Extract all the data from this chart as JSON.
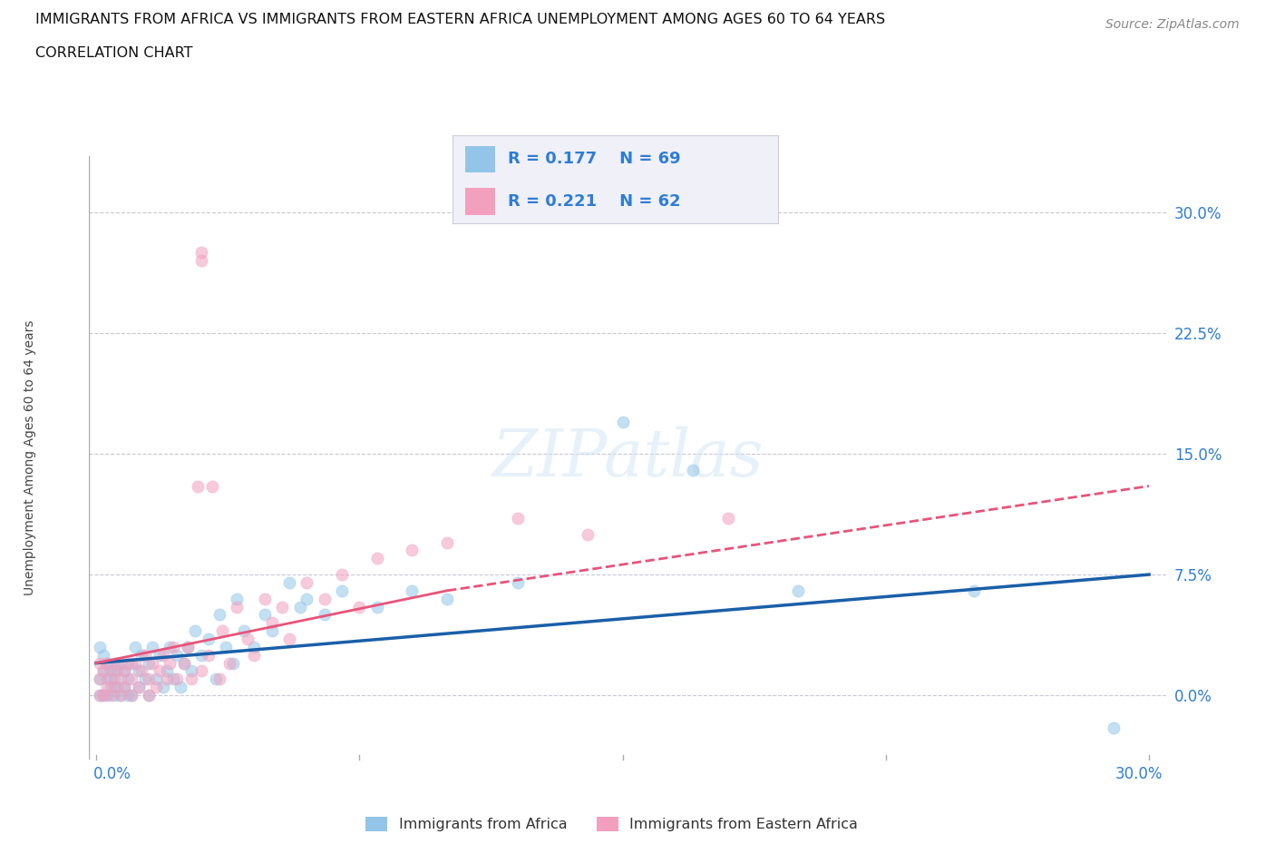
{
  "title_line1": "IMMIGRANTS FROM AFRICA VS IMMIGRANTS FROM EASTERN AFRICA UNEMPLOYMENT AMONG AGES 60 TO 64 YEARS",
  "title_line2": "CORRELATION CHART",
  "source": "Source: ZipAtlas.com",
  "ylabel": "Unemployment Among Ages 60 to 64 years",
  "ytick_labels": [
    "0.0%",
    "7.5%",
    "15.0%",
    "22.5%",
    "30.0%"
  ],
  "ytick_values": [
    0.0,
    0.075,
    0.15,
    0.225,
    0.3
  ],
  "xlim": [
    -0.002,
    0.305
  ],
  "ylim": [
    -0.04,
    0.335
  ],
  "r_africa": 0.177,
  "n_africa": 69,
  "r_eastern": 0.221,
  "n_eastern": 62,
  "color_africa": "#93C5E8",
  "color_eastern": "#F2A0BE",
  "trendline_africa_color": "#1A5FA8",
  "trendline_eastern_color": "#E8547A",
  "background_color": "#FFFFFF",
  "grid_color": "#C8C8D8",
  "right_label_color": "#2E7DD6",
  "title_color": "#111111",
  "source_color": "#888888",
  "legend_bg": "#F0F0F8",
  "legend_border": "#CCCCDD",
  "trendline_africa_start_y": 0.02,
  "trendline_africa_end_y": 0.075,
  "trendline_eastern_start_y": 0.02,
  "trendline_eastern_end_y": 0.13,
  "africa_x": [
    0.001,
    0.001,
    0.001,
    0.002,
    0.002,
    0.002,
    0.003,
    0.003,
    0.003,
    0.004,
    0.004,
    0.005,
    0.005,
    0.005,
    0.006,
    0.006,
    0.007,
    0.007,
    0.008,
    0.008,
    0.009,
    0.009,
    0.01,
    0.01,
    0.011,
    0.012,
    0.012,
    0.013,
    0.014,
    0.015,
    0.015,
    0.016,
    0.017,
    0.018,
    0.019,
    0.02,
    0.021,
    0.022,
    0.023,
    0.024,
    0.025,
    0.026,
    0.027,
    0.028,
    0.03,
    0.032,
    0.034,
    0.035,
    0.037,
    0.039,
    0.04,
    0.042,
    0.045,
    0.048,
    0.05,
    0.055,
    0.058,
    0.06,
    0.065,
    0.07,
    0.08,
    0.09,
    0.1,
    0.12,
    0.15,
    0.17,
    0.2,
    0.25,
    0.29
  ],
  "africa_y": [
    0.0,
    0.01,
    0.03,
    0.0,
    0.015,
    0.025,
    0.0,
    0.01,
    0.02,
    0.005,
    0.015,
    0.0,
    0.01,
    0.02,
    0.005,
    0.015,
    0.0,
    0.02,
    0.005,
    0.015,
    0.0,
    0.01,
    0.0,
    0.02,
    0.03,
    0.005,
    0.015,
    0.025,
    0.01,
    0.0,
    0.02,
    0.03,
    0.01,
    0.025,
    0.005,
    0.015,
    0.03,
    0.01,
    0.025,
    0.005,
    0.02,
    0.03,
    0.015,
    0.04,
    0.025,
    0.035,
    0.01,
    0.05,
    0.03,
    0.02,
    0.06,
    0.04,
    0.03,
    0.05,
    0.04,
    0.07,
    0.055,
    0.06,
    0.05,
    0.065,
    0.055,
    0.065,
    0.06,
    0.07,
    0.17,
    0.14,
    0.065,
    0.065,
    -0.02
  ],
  "eastern_x": [
    0.001,
    0.001,
    0.001,
    0.002,
    0.002,
    0.003,
    0.003,
    0.004,
    0.004,
    0.005,
    0.005,
    0.006,
    0.007,
    0.007,
    0.008,
    0.008,
    0.009,
    0.01,
    0.01,
    0.011,
    0.012,
    0.013,
    0.014,
    0.015,
    0.015,
    0.016,
    0.017,
    0.018,
    0.019,
    0.02,
    0.021,
    0.022,
    0.023,
    0.025,
    0.026,
    0.027,
    0.029,
    0.03,
    0.032,
    0.033,
    0.035,
    0.036,
    0.038,
    0.04,
    0.043,
    0.045,
    0.048,
    0.05,
    0.053,
    0.055,
    0.06,
    0.065,
    0.07,
    0.075,
    0.08,
    0.09,
    0.1,
    0.12,
    0.14,
    0.03,
    0.03,
    0.18
  ],
  "eastern_y": [
    0.0,
    0.01,
    0.02,
    0.0,
    0.015,
    0.005,
    0.02,
    0.0,
    0.01,
    0.005,
    0.015,
    0.02,
    0.0,
    0.01,
    0.005,
    0.015,
    0.02,
    0.0,
    0.01,
    0.02,
    0.005,
    0.015,
    0.025,
    0.0,
    0.01,
    0.02,
    0.005,
    0.015,
    0.025,
    0.01,
    0.02,
    0.03,
    0.01,
    0.02,
    0.03,
    0.01,
    0.13,
    0.015,
    0.025,
    0.13,
    0.01,
    0.04,
    0.02,
    0.055,
    0.035,
    0.025,
    0.06,
    0.045,
    0.055,
    0.035,
    0.07,
    0.06,
    0.075,
    0.055,
    0.085,
    0.09,
    0.095,
    0.11,
    0.1,
    0.27,
    0.275,
    0.11
  ]
}
